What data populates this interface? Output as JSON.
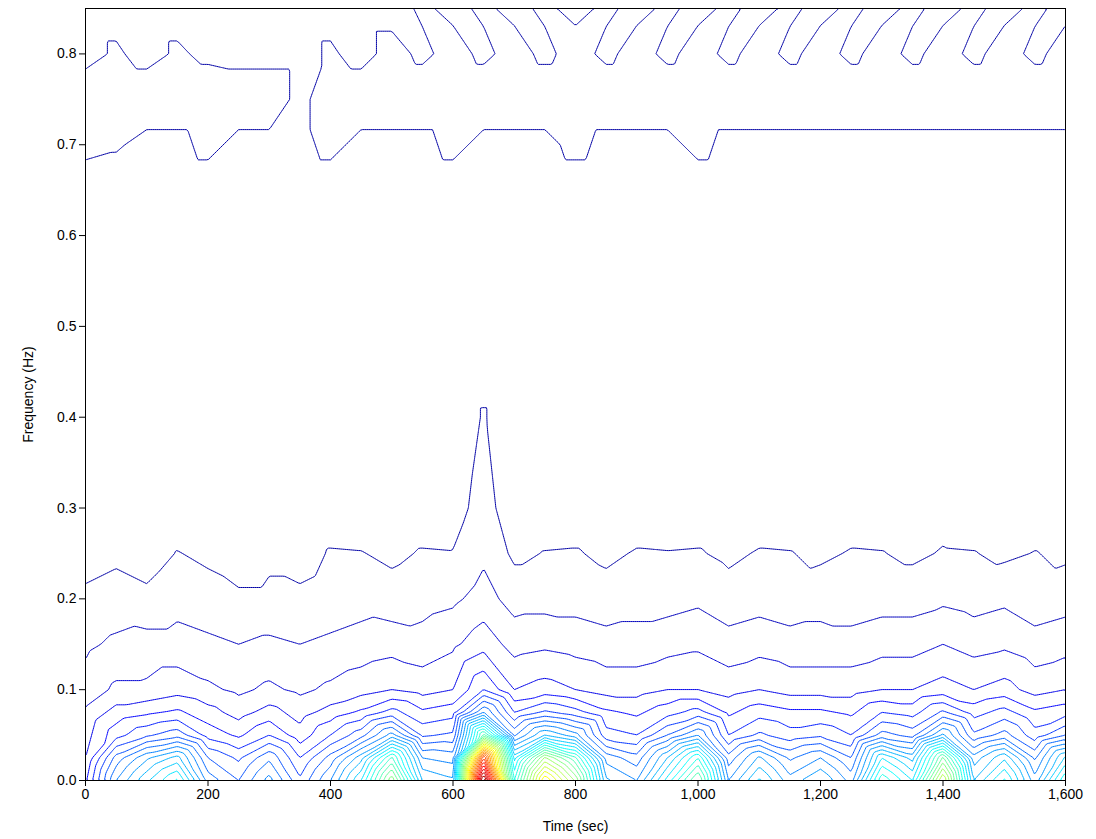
{
  "chart_data": {
    "type": "contour",
    "x_label": "Time (sec)",
    "y_label": "Frequency (Hz)",
    "xlim": [
      0,
      1600
    ],
    "xticks": [
      0,
      200,
      400,
      600,
      800,
      1000,
      1200,
      1400,
      1600
    ],
    "ylim": [
      0,
      0.85
    ],
    "yticks": [
      0,
      0.1,
      0.2,
      0.3,
      0.4,
      0.5,
      0.6,
      0.7,
      0.8
    ],
    "grid": false,
    "zlim": [
      0,
      10
    ],
    "contour_levels": [
      0.25,
      0.5,
      0.75,
      1,
      1.25,
      1.5,
      1.75,
      2,
      2.25,
      2.5,
      2.75,
      3,
      3.25,
      3.5,
      3.75,
      4,
      4.25,
      4.5,
      4.75,
      5,
      5.25,
      5.5,
      5.75,
      6,
      6.25,
      6.5,
      6.75,
      7,
      7.25,
      7.5,
      7.75,
      8,
      8.25,
      8.5,
      8.75,
      9,
      9.25,
      9.5,
      9.75
    ],
    "times": [
      0,
      50,
      100,
      150,
      200,
      250,
      300,
      350,
      400,
      450,
      500,
      550,
      600,
      650,
      700,
      750,
      800,
      850,
      900,
      950,
      1000,
      1050,
      1100,
      1150,
      1200,
      1250,
      1300,
      1350,
      1400,
      1450,
      1500,
      1550,
      1600
    ],
    "frequencies": [
      0,
      0.025,
      0.05,
      0.075,
      0.1,
      0.15,
      0.2,
      0.25,
      0.3,
      0.4,
      0.5,
      0.6,
      0.65,
      0.7,
      0.75,
      0.8,
      0.85
    ],
    "power": [
      [
        1.2,
        2.5,
        3.2,
        3.8,
        2.4,
        2.0,
        2.6,
        1.8,
        2.5,
        3.5,
        5.2,
        3.0,
        2.8,
        10,
        4.0,
        6.5,
        5.2,
        2.8,
        2.5,
        3.6,
        4.8,
        2.5,
        3.3,
        2.6,
        3.0,
        2.4,
        4.2,
        3.5,
        5.8,
        3.0,
        3.8,
        2.6,
        4.0
      ],
      [
        1.0,
        2.1,
        2.7,
        3.1,
        2.0,
        1.7,
        2.2,
        1.5,
        2.1,
        2.9,
        4.3,
        2.5,
        2.4,
        8.3,
        3.4,
        5.3,
        4.3,
        2.4,
        2.1,
        3.0,
        4.0,
        2.1,
        2.8,
        2.2,
        2.5,
        2.0,
        3.5,
        2.9,
        4.8,
        2.6,
        3.2,
        2.2,
        3.3
      ],
      [
        0.9,
        1.4,
        1.7,
        1.9,
        1.4,
        1.2,
        1.5,
        1.1,
        1.5,
        1.9,
        2.6,
        1.7,
        1.8,
        4.6,
        2.2,
        3.0,
        2.6,
        1.6,
        1.5,
        2.0,
        2.5,
        1.5,
        1.8,
        1.6,
        1.7,
        1.5,
        2.1,
        1.9,
        2.8,
        1.8,
        2.1,
        1.6,
        2.0
      ],
      [
        0.8,
        1.1,
        1.2,
        1.3,
        1.1,
        0.9,
        1.1,
        0.9,
        1.1,
        1.3,
        1.6,
        1.3,
        1.4,
        2.5,
        1.5,
        1.8,
        1.6,
        1.3,
        1.2,
        1.4,
        1.6,
        1.2,
        1.4,
        1.3,
        1.3,
        1.2,
        1.5,
        1.4,
        1.8,
        1.4,
        1.6,
        1.3,
        1.4
      ],
      [
        0.6,
        0.8,
        0.8,
        0.9,
        0.8,
        0.7,
        0.8,
        0.7,
        0.8,
        0.9,
        1.0,
        0.9,
        1.0,
        1.5,
        1.0,
        1.1,
        1.0,
        0.9,
        0.9,
        1.0,
        1.0,
        0.9,
        1.0,
        0.9,
        0.9,
        0.9,
        1.0,
        1.0,
        1.1,
        1.0,
        1.1,
        0.9,
        1.0
      ],
      [
        0.45,
        0.55,
        0.6,
        0.6,
        0.55,
        0.5,
        0.55,
        0.5,
        0.55,
        0.6,
        0.65,
        0.6,
        0.7,
        0.9,
        0.65,
        0.7,
        0.65,
        0.6,
        0.6,
        0.65,
        0.7,
        0.6,
        0.65,
        0.6,
        0.6,
        0.6,
        0.65,
        0.65,
        0.75,
        0.65,
        0.7,
        0.6,
        0.65
      ],
      [
        0.3,
        0.35,
        0.3,
        0.4,
        0.35,
        0.3,
        0.3,
        0.3,
        0.35,
        0.4,
        0.35,
        0.4,
        0.45,
        0.6,
        0.4,
        0.4,
        0.4,
        0.35,
        0.4,
        0.4,
        0.45,
        0.35,
        0.4,
        0.35,
        0.4,
        0.35,
        0.4,
        0.4,
        0.45,
        0.4,
        0.45,
        0.35,
        0.4
      ],
      [
        0.15,
        0.2,
        0.15,
        0.26,
        0.2,
        0.1,
        0.2,
        0.15,
        0.27,
        0.26,
        0.2,
        0.27,
        0.26,
        0.45,
        0.2,
        0.26,
        0.27,
        0.2,
        0.27,
        0.26,
        0.27,
        0.2,
        0.27,
        0.26,
        0.2,
        0.27,
        0.26,
        0.2,
        0.27,
        0.26,
        0.2,
        0.26,
        0.2
      ],
      [
        0.1,
        0.1,
        0.1,
        0.1,
        0.1,
        0.1,
        0.1,
        0.1,
        0.1,
        0.1,
        0.1,
        0.1,
        0.15,
        0.35,
        0.1,
        0.1,
        0.1,
        0.1,
        0.1,
        0.1,
        0.1,
        0.1,
        0.1,
        0.1,
        0.1,
        0.1,
        0.1,
        0.1,
        0.15,
        0.1,
        0.1,
        0.1,
        0.1
      ],
      [
        0.08,
        0.08,
        0.08,
        0.08,
        0.08,
        0.08,
        0.08,
        0.08,
        0.08,
        0.08,
        0.08,
        0.08,
        0.08,
        0.27,
        0.08,
        0.08,
        0.08,
        0.08,
        0.08,
        0.08,
        0.08,
        0.08,
        0.08,
        0.08,
        0.08,
        0.08,
        0.08,
        0.08,
        0.08,
        0.08,
        0.08,
        0.08,
        0.08
      ],
      [
        0.08,
        0.08,
        0.08,
        0.08,
        0.08,
        0.08,
        0.08,
        0.08,
        0.08,
        0.08,
        0.08,
        0.08,
        0.08,
        0.08,
        0.08,
        0.08,
        0.08,
        0.08,
        0.08,
        0.08,
        0.08,
        0.08,
        0.08,
        0.08,
        0.08,
        0.08,
        0.08,
        0.08,
        0.08,
        0.08,
        0.08,
        0.08,
        0.08
      ],
      [
        0.08,
        0.08,
        0.08,
        0.08,
        0.08,
        0.08,
        0.08,
        0.08,
        0.08,
        0.08,
        0.08,
        0.08,
        0.08,
        0.08,
        0.08,
        0.08,
        0.08,
        0.08,
        0.08,
        0.08,
        0.08,
        0.08,
        0.08,
        0.08,
        0.08,
        0.08,
        0.08,
        0.08,
        0.08,
        0.08,
        0.08,
        0.08,
        0.08
      ],
      [
        0.15,
        0.15,
        0.15,
        0.15,
        0.15,
        0.15,
        0.15,
        0.15,
        0.15,
        0.15,
        0.15,
        0.15,
        0.15,
        0.15,
        0.15,
        0.15,
        0.15,
        0.15,
        0.15,
        0.15,
        0.15,
        0.15,
        0.15,
        0.15,
        0.15,
        0.15,
        0.15,
        0.15,
        0.15,
        0.15,
        0.15,
        0.15,
        0.15
      ],
      [
        0.3,
        0.27,
        0.2,
        0.2,
        0.3,
        0.2,
        0.2,
        0.2,
        0.3,
        0.2,
        0.2,
        0.2,
        0.3,
        0.2,
        0.2,
        0.2,
        0.3,
        0.2,
        0.2,
        0.2,
        0.3,
        0.2,
        0.2,
        0.2,
        0.2,
        0.2,
        0.2,
        0.2,
        0.2,
        0.2,
        0.2,
        0.2,
        0.2
      ],
      [
        0.35,
        0.35,
        0.35,
        0.35,
        0.35,
        0.35,
        0.35,
        0.2,
        0.35,
        0.35,
        0.35,
        0.35,
        0.35,
        0.35,
        0.35,
        0.35,
        0.35,
        0.35,
        0.35,
        0.35,
        0.35,
        0.35,
        0.35,
        0.35,
        0.35,
        0.35,
        0.35,
        0.35,
        0.35,
        0.35,
        0.35,
        0.35,
        0.35
      ],
      [
        0.2,
        0.27,
        0.2,
        0.27,
        0.22,
        0.2,
        0.2,
        0.2,
        0.27,
        0.2,
        0.3,
        0.22,
        0.3,
        0.22,
        0.3,
        0.22,
        0.3,
        0.22,
        0.3,
        0.22,
        0.3,
        0.22,
        0.3,
        0.22,
        0.3,
        0.22,
        0.3,
        0.22,
        0.3,
        0.22,
        0.3,
        0.22,
        0.3
      ],
      [
        0.2,
        0.2,
        0.2,
        0.2,
        0.2,
        0.2,
        0.2,
        0.2,
        0.2,
        0.2,
        0.2,
        0.27,
        0.22,
        0.27,
        0.22,
        0.27,
        0.22,
        0.27,
        0.22,
        0.27,
        0.22,
        0.27,
        0.22,
        0.27,
        0.22,
        0.27,
        0.22,
        0.27,
        0.22,
        0.27,
        0.22,
        0.27,
        0.22
      ]
    ]
  }
}
